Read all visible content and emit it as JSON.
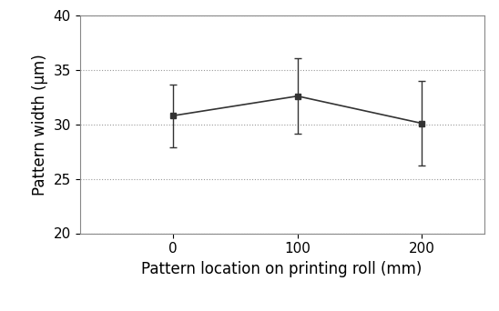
{
  "chart_data": {
    "type": "line",
    "x_label": "Pattern location on printing roll (mm)",
    "y_label": "Pattern width (µm)",
    "x": [
      0,
      100,
      200
    ],
    "values": [
      30.8,
      32.6,
      30.1
    ],
    "errors": [
      2.9,
      3.45,
      3.9
    ],
    "color": "#333333",
    "marker": "s",
    "line_style": "solid",
    "xlim": [
      -75,
      250
    ],
    "xticks": [
      0,
      100,
      200
    ],
    "ylim": [
      20,
      40
    ],
    "yticks": [
      20,
      25,
      30,
      35,
      40
    ],
    "grid": true
  }
}
